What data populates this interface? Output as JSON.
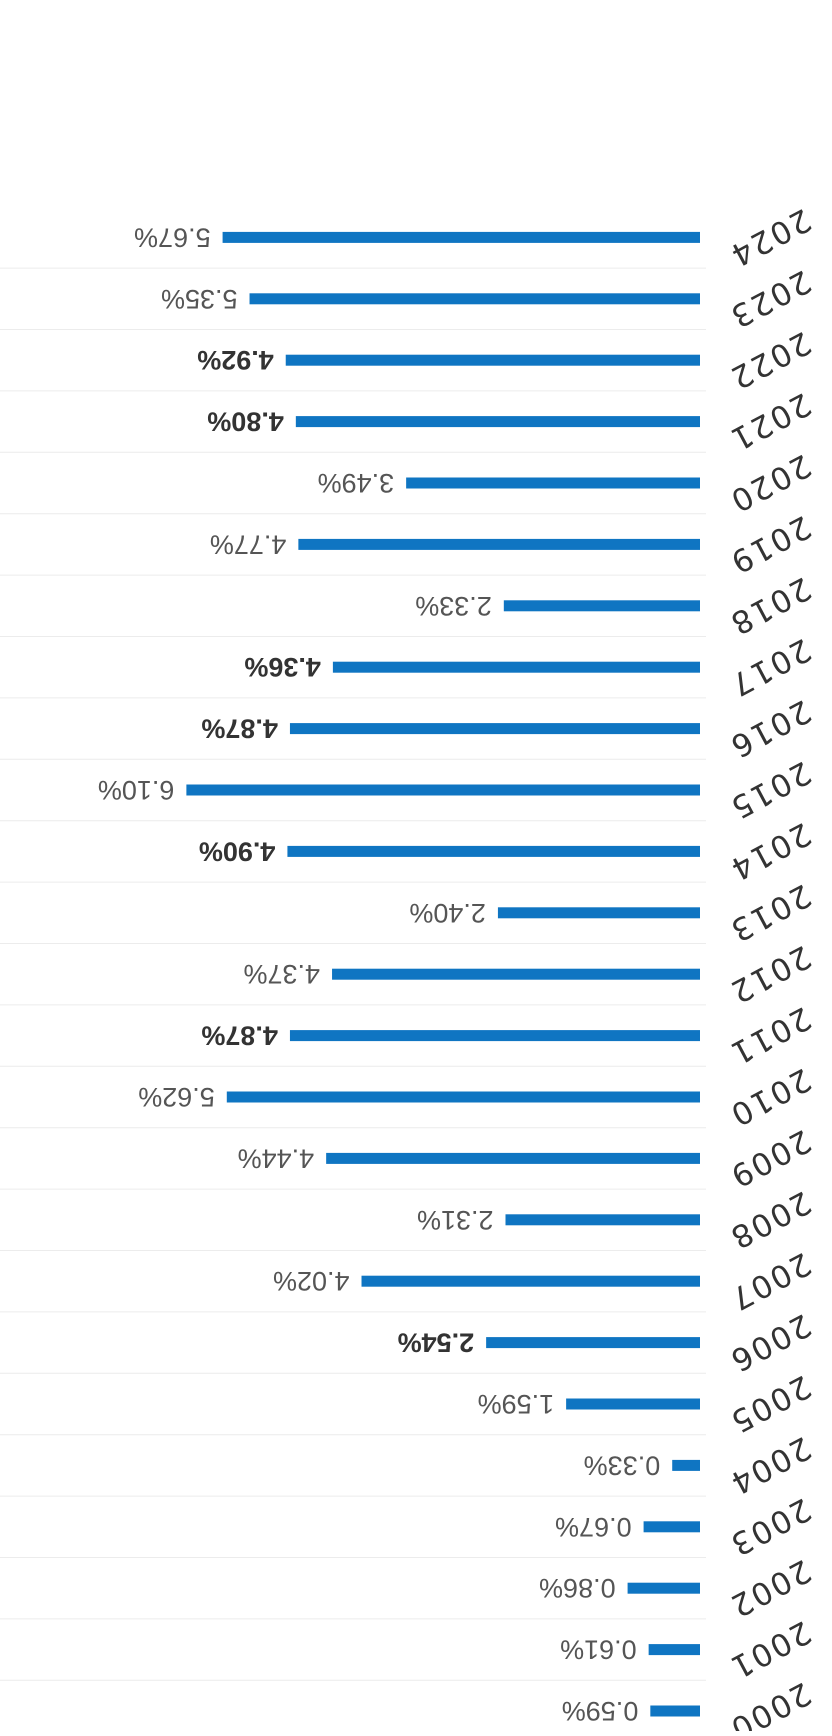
{
  "chart_data": {
    "type": "bar",
    "orientation": "horizontal",
    "rotated_180": true,
    "categories": [
      "2000",
      "2001",
      "2002",
      "2003",
      "2004",
      "2005",
      "2006",
      "2007",
      "2008",
      "2009",
      "2010",
      "2011",
      "2012",
      "2013",
      "2014",
      "2015",
      "2016",
      "2017",
      "2018",
      "2019",
      "2020",
      "2021",
      "2022",
      "2023",
      "2024"
    ],
    "values": [
      0.59,
      0.61,
      0.86,
      0.67,
      0.33,
      1.59,
      2.54,
      4.02,
      2.31,
      4.44,
      5.62,
      4.87,
      4.37,
      2.4,
      4.9,
      6.1,
      4.87,
      4.36,
      2.33,
      4.77,
      3.49,
      4.8,
      4.92,
      5.35,
      5.67
    ],
    "value_labels": [
      "0.59%",
      "0.61%",
      "0.86%",
      "0.67%",
      "0.33%",
      "1.59%",
      "2.54%",
      "4.02%",
      "2.31%",
      "4.44%",
      "5.62%",
      "4.87%",
      "4.37%",
      "2.40%",
      "4.90%",
      "6.10%",
      "4.87%",
      "4.36%",
      "2.33%",
      "4.77%",
      "3.49%",
      "4.80%",
      "4.92%",
      "5.35%",
      "5.67%"
    ],
    "bold_labels": [
      "2.54%",
      "4.90%",
      "4.87%",
      "4.92%",
      "4.80%",
      "4.36%"
    ],
    "unit": "%",
    "xlim": [
      0,
      6.1
    ],
    "title": "",
    "xlabel": "",
    "ylabel": "",
    "grid": true,
    "legend": "none",
    "colors": {
      "bar": "#0f75c2",
      "label": "#555555",
      "tick": "#333333",
      "grid": "#ececec"
    }
  }
}
